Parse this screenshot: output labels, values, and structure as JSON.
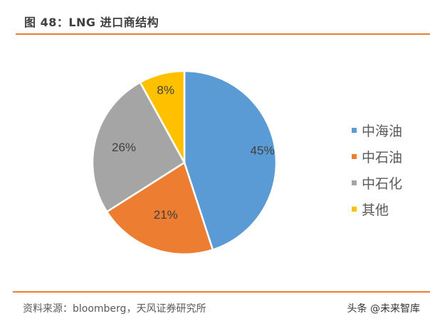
{
  "header": {
    "title": "图 48：LNG 进口商结构"
  },
  "footer": {
    "source": "资料来源：bloomberg，天风证券研究所",
    "watermark": "头条 @未来智库"
  },
  "chart_data": {
    "type": "pie",
    "title": "图 48：LNG 进口商结构",
    "categories": [
      "中海油",
      "中石油",
      "中石化",
      "其他"
    ],
    "values": [
      45,
      21,
      26,
      8
    ],
    "labels": [
      "45%",
      "21%",
      "26%",
      "8%"
    ],
    "colors": [
      "#5b9bd5",
      "#ed7d31",
      "#a5a5a5",
      "#ffc000"
    ],
    "legend_position": "right",
    "start_angle_deg": 0,
    "direction": "clockwise"
  },
  "legend": {
    "items": [
      {
        "label": "中海油",
        "color": "#5b9bd5"
      },
      {
        "label": "中石油",
        "color": "#ed7d31"
      },
      {
        "label": "中石化",
        "color": "#a5a5a5"
      },
      {
        "label": "其他",
        "color": "#ffc000"
      }
    ]
  }
}
